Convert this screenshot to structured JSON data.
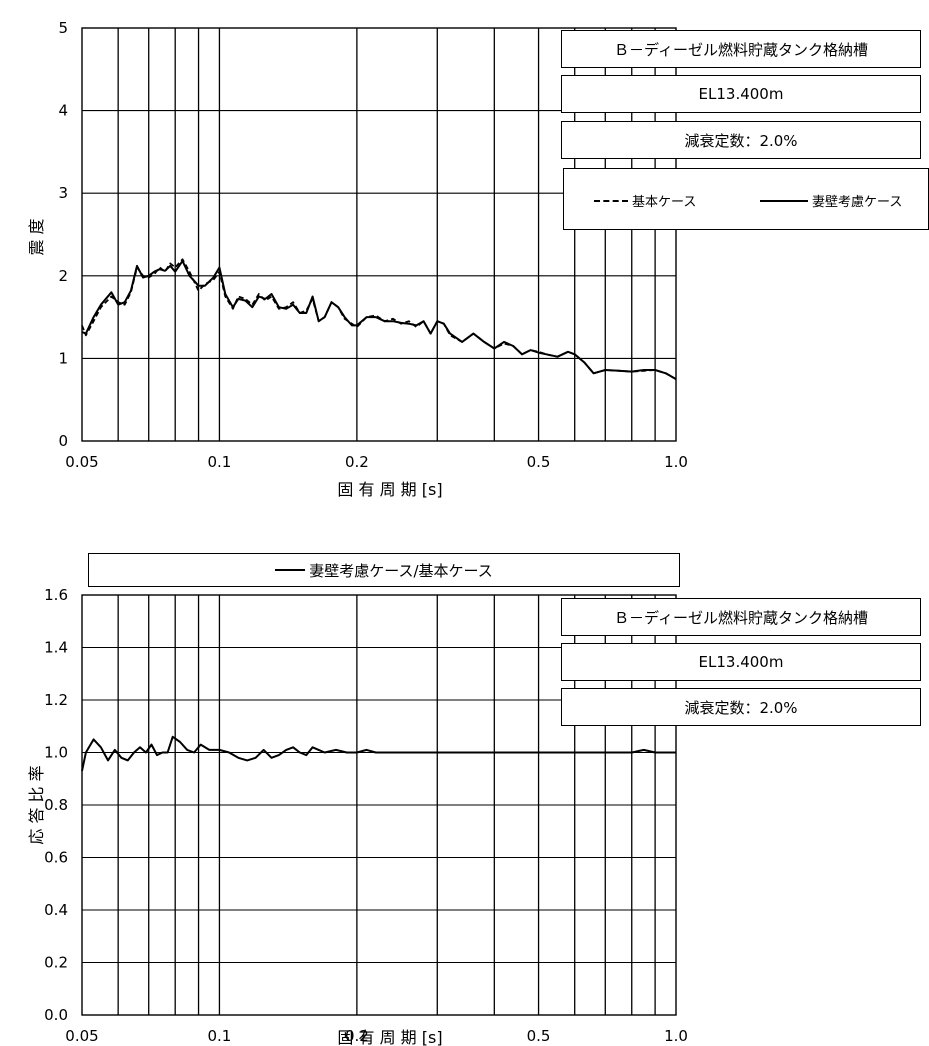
{
  "chart_data": [
    {
      "type": "line",
      "title": "",
      "xlabel": "固 有 周 期 [s]",
      "ylabel": "震 度",
      "xscale": "log",
      "xlim": [
        0.05,
        1.0
      ],
      "ylim": [
        0,
        5
      ],
      "x_tick_labels": [
        "0.05",
        "0.1",
        "0.2",
        "0.5",
        "1.0"
      ],
      "x_tick_values": [
        0.05,
        0.1,
        0.2,
        0.5,
        1.0
      ],
      "y_tick_labels": [
        "0",
        "1",
        "2",
        "3",
        "4",
        "5"
      ],
      "y_tick_values": [
        0,
        1,
        2,
        3,
        4,
        5
      ],
      "grid": true,
      "legend_position": "top-right",
      "info_boxes": [
        "Ｂ－ディーゼル燃料貯蔵タンク格納槽",
        "EL13.400m",
        "減衰定数：2.0%"
      ],
      "series": [
        {
          "name": "基本ケース",
          "style": "dashed",
          "color": "#000000",
          "x": [
            0.05,
            0.051,
            0.053,
            0.055,
            0.058,
            0.06,
            0.062,
            0.064,
            0.066,
            0.068,
            0.07,
            0.072,
            0.074,
            0.076,
            0.078,
            0.08,
            0.083,
            0.086,
            0.09,
            0.093,
            0.097,
            0.1,
            0.103,
            0.107,
            0.11,
            0.114,
            0.118,
            0.122,
            0.126,
            0.13,
            0.135,
            0.14,
            0.145,
            0.15,
            0.155,
            0.16,
            0.165,
            0.17,
            0.176,
            0.182,
            0.188,
            0.195,
            0.2,
            0.21,
            0.22,
            0.23,
            0.24,
            0.25,
            0.26,
            0.27,
            0.28,
            0.29,
            0.3,
            0.31,
            0.32,
            0.34,
            0.36,
            0.38,
            0.4,
            0.42,
            0.44,
            0.46,
            0.48,
            0.5,
            0.52,
            0.55,
            0.58,
            0.6,
            0.63,
            0.66,
            0.7,
            0.75,
            0.8,
            0.85,
            0.9,
            0.95,
            1.0
          ],
          "y": [
            1.4,
            1.28,
            1.45,
            1.62,
            1.75,
            1.68,
            1.65,
            1.8,
            2.1,
            2.0,
            1.98,
            2.02,
            2.1,
            2.05,
            2.15,
            2.1,
            2.2,
            2.05,
            1.82,
            1.9,
            1.95,
            2.05,
            1.75,
            1.6,
            1.75,
            1.72,
            1.65,
            1.78,
            1.7,
            1.75,
            1.6,
            1.62,
            1.68,
            1.55,
            1.58,
            1.72,
            1.45,
            1.5,
            1.68,
            1.62,
            1.48,
            1.42,
            1.38,
            1.5,
            1.52,
            1.45,
            1.48,
            1.42,
            1.45,
            1.38,
            1.45,
            1.3,
            1.45,
            1.42,
            1.28,
            1.2,
            1.3,
            1.2,
            1.12,
            1.18,
            1.15,
            1.05,
            1.1,
            1.08,
            1.05,
            1.02,
            1.08,
            1.05,
            0.95,
            0.82,
            0.86,
            0.85,
            0.84,
            0.85,
            0.86,
            0.82,
            0.75
          ]
        },
        {
          "name": "妻壁考慮ケース",
          "style": "solid",
          "color": "#000000",
          "x": [
            0.05,
            0.051,
            0.053,
            0.055,
            0.058,
            0.06,
            0.062,
            0.064,
            0.066,
            0.068,
            0.07,
            0.072,
            0.074,
            0.076,
            0.078,
            0.08,
            0.083,
            0.086,
            0.09,
            0.093,
            0.097,
            0.1,
            0.103,
            0.107,
            0.11,
            0.114,
            0.118,
            0.122,
            0.126,
            0.13,
            0.135,
            0.14,
            0.145,
            0.15,
            0.155,
            0.16,
            0.165,
            0.17,
            0.176,
            0.182,
            0.188,
            0.195,
            0.2,
            0.21,
            0.22,
            0.23,
            0.24,
            0.25,
            0.26,
            0.27,
            0.28,
            0.29,
            0.3,
            0.31,
            0.32,
            0.34,
            0.36,
            0.38,
            0.4,
            0.42,
            0.44,
            0.46,
            0.48,
            0.5,
            0.52,
            0.55,
            0.58,
            0.6,
            0.63,
            0.66,
            0.7,
            0.75,
            0.8,
            0.85,
            0.9,
            0.95,
            1.0
          ],
          "y": [
            1.32,
            1.3,
            1.5,
            1.65,
            1.8,
            1.65,
            1.68,
            1.82,
            2.12,
            1.98,
            2.0,
            2.05,
            2.08,
            2.06,
            2.12,
            2.05,
            2.18,
            2.0,
            1.88,
            1.88,
            1.98,
            2.1,
            1.78,
            1.62,
            1.72,
            1.7,
            1.62,
            1.75,
            1.72,
            1.78,
            1.62,
            1.6,
            1.65,
            1.55,
            1.55,
            1.75,
            1.45,
            1.5,
            1.68,
            1.62,
            1.5,
            1.4,
            1.4,
            1.5,
            1.5,
            1.45,
            1.45,
            1.43,
            1.42,
            1.4,
            1.45,
            1.3,
            1.45,
            1.42,
            1.3,
            1.2,
            1.3,
            1.2,
            1.12,
            1.2,
            1.15,
            1.05,
            1.1,
            1.07,
            1.05,
            1.02,
            1.08,
            1.05,
            0.95,
            0.82,
            0.86,
            0.85,
            0.84,
            0.86,
            0.86,
            0.82,
            0.75
          ]
        }
      ]
    },
    {
      "type": "line",
      "title": "",
      "xlabel": "固 有 周 期 [s]",
      "ylabel": "応 答 比 率",
      "xscale": "log",
      "xlim": [
        0.05,
        1.0
      ],
      "ylim": [
        0.0,
        1.6
      ],
      "x_tick_labels": [
        "0.05",
        "0.1",
        "0.2",
        "0.5",
        "1.0"
      ],
      "x_tick_values": [
        0.05,
        0.1,
        0.2,
        0.5,
        1.0
      ],
      "y_tick_labels": [
        "0.0",
        "0.2",
        "0.4",
        "0.6",
        "0.8",
        "1.0",
        "1.2",
        "1.4",
        "1.6"
      ],
      "y_tick_values": [
        0.0,
        0.2,
        0.4,
        0.6,
        0.8,
        1.0,
        1.2,
        1.4,
        1.6
      ],
      "grid": true,
      "legend_position": "top",
      "info_boxes": [
        "Ｂ－ディーゼル燃料貯蔵タンク格納槽",
        "EL13.400m",
        "減衰定数：2.0%"
      ],
      "series": [
        {
          "name": "妻壁考慮ケース/基本ケース",
          "style": "solid",
          "color": "#000000",
          "x": [
            0.05,
            0.051,
            0.053,
            0.055,
            0.057,
            0.059,
            0.061,
            0.063,
            0.065,
            0.067,
            0.069,
            0.071,
            0.073,
            0.075,
            0.077,
            0.079,
            0.082,
            0.085,
            0.088,
            0.091,
            0.095,
            0.1,
            0.105,
            0.11,
            0.115,
            0.12,
            0.125,
            0.13,
            0.135,
            0.14,
            0.145,
            0.15,
            0.155,
            0.16,
            0.165,
            0.17,
            0.18,
            0.19,
            0.2,
            0.21,
            0.22,
            0.23,
            0.25,
            0.27,
            0.3,
            0.35,
            0.4,
            0.5,
            0.6,
            0.7,
            0.75,
            0.8,
            0.85,
            0.9,
            0.95,
            1.0
          ],
          "y": [
            0.93,
            1.0,
            1.05,
            1.02,
            0.97,
            1.01,
            0.98,
            0.97,
            1.0,
            1.02,
            1.0,
            1.03,
            0.99,
            1.0,
            1.0,
            1.06,
            1.04,
            1.01,
            1.0,
            1.03,
            1.01,
            1.01,
            1.0,
            0.98,
            0.97,
            0.98,
            1.01,
            0.98,
            0.99,
            1.01,
            1.02,
            1.0,
            0.99,
            1.02,
            1.01,
            1.0,
            1.01,
            1.0,
            1.0,
            1.01,
            1.0,
            1.0,
            1.0,
            1.0,
            1.0,
            1.0,
            1.0,
            1.0,
            1.0,
            1.0,
            1.0,
            1.0,
            1.01,
            1.0,
            1.0,
            1.0
          ]
        }
      ]
    }
  ]
}
